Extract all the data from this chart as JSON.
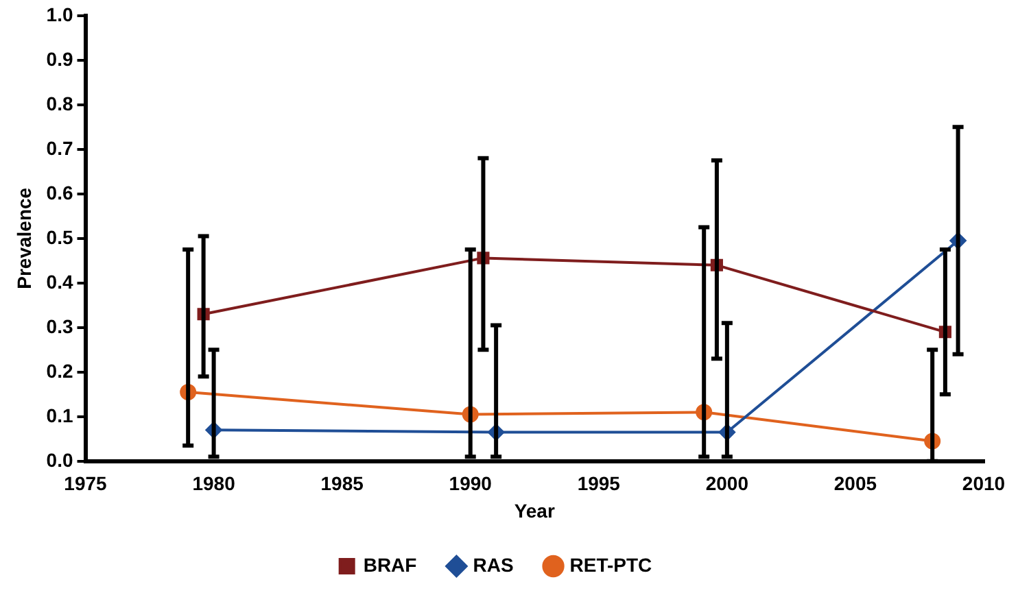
{
  "chart_data": {
    "type": "line",
    "xlabel": "Year",
    "ylabel": "Prevalence",
    "xlim": [
      1975,
      2010
    ],
    "xticks": [
      1975,
      1980,
      1985,
      1990,
      1995,
      2000,
      2005,
      2010
    ],
    "ylim": [
      0,
      1
    ],
    "yticks": [
      {
        "value": 0,
        "label": "0.0"
      },
      {
        "value": 0.1,
        "label": "0.1"
      },
      {
        "value": 0.2,
        "label": "0.2"
      },
      {
        "value": 0.3,
        "label": "0.3"
      },
      {
        "value": 0.4,
        "label": "0.4"
      },
      {
        "value": 0.5,
        "label": "0.5"
      },
      {
        "value": 0.6,
        "label": "0.6"
      },
      {
        "value": 0.7,
        "label": "0.7"
      },
      {
        "value": 0.8,
        "label": "0.8"
      },
      {
        "value": 0.9,
        "label": "0.9"
      },
      {
        "value": 1,
        "label": "1.0"
      }
    ],
    "grid": false,
    "legend": "bottom",
    "line_style": "solid",
    "series": [
      {
        "name": "BRAF",
        "color": "#7f1d1d",
        "marker": "square",
        "x": [
          1979.6,
          1990.5,
          1999.6,
          2008.5
        ],
        "values": [
          0.33,
          0.456,
          0.44,
          0.29
        ],
        "errors": [
          [
            0.19,
            0.505
          ],
          [
            0.25,
            0.68
          ],
          [
            0.23,
            0.675
          ],
          [
            0.15,
            0.475
          ]
        ]
      },
      {
        "name": "RAS",
        "color": "#1f4e96",
        "marker": "diamond",
        "x": [
          1980,
          1991,
          2000,
          2009
        ],
        "values": [
          0.07,
          0.065,
          0.065,
          0.495
        ],
        "errors": [
          [
            0.01,
            0.25
          ],
          [
            0.01,
            0.305
          ],
          [
            0.01,
            0.31
          ],
          [
            0.24,
            0.75
          ]
        ]
      },
      {
        "name": "RET-PTC",
        "color": "#e0621e",
        "marker": "circle",
        "x": [
          1979,
          1990,
          1999.1,
          2008
        ],
        "values": [
          0.155,
          0.105,
          0.11,
          0.045
        ],
        "errors": [
          [
            0.035,
            0.475
          ],
          [
            0.01,
            0.475
          ],
          [
            0.01,
            0.525
          ],
          [
            0,
            0.25
          ]
        ]
      }
    ]
  }
}
